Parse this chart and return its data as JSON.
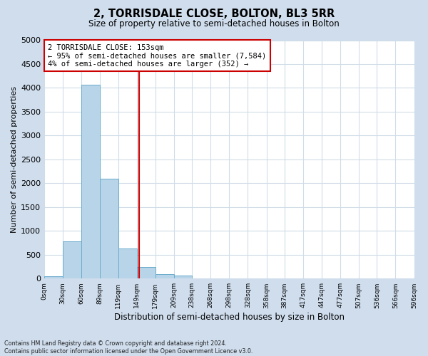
{
  "title": "2, TORRISDALE CLOSE, BOLTON, BL3 5RR",
  "subtitle": "Size of property relative to semi-detached houses in Bolton",
  "xlabel": "Distribution of semi-detached houses by size in Bolton",
  "ylabel": "Number of semi-detached properties",
  "bar_color": "#b8d4e8",
  "bar_edge_color": "#6aaccc",
  "background_color": "#cfdded",
  "plot_bg_color": "#ffffff",
  "gridcolor": "#d0dce8",
  "bin_edges": [
    0,
    30,
    60,
    89,
    119,
    149,
    179,
    209,
    238,
    268,
    298,
    328,
    358,
    387,
    417,
    447,
    477,
    507,
    536,
    566,
    596
  ],
  "bin_labels": [
    "0sqm",
    "30sqm",
    "60sqm",
    "89sqm",
    "119sqm",
    "149sqm",
    "179sqm",
    "209sqm",
    "238sqm",
    "268sqm",
    "298sqm",
    "328sqm",
    "358sqm",
    "387sqm",
    "417sqm",
    "447sqm",
    "477sqm",
    "507sqm",
    "536sqm",
    "566sqm",
    "596sqm"
  ],
  "bar_heights": [
    50,
    780,
    4070,
    2100,
    630,
    240,
    100,
    60,
    0,
    0,
    0,
    0,
    0,
    0,
    0,
    0,
    0,
    0,
    0,
    0
  ],
  "ylim": [
    0,
    5000
  ],
  "yticks": [
    0,
    500,
    1000,
    1500,
    2000,
    2500,
    3000,
    3500,
    4000,
    4500,
    5000
  ],
  "vline_x": 153,
  "vline_color": "#cc0000",
  "annotation_title": "2 TORRISDALE CLOSE: 153sqm",
  "annotation_line1": "← 95% of semi-detached houses are smaller (7,584)",
  "annotation_line2": "4% of semi-detached houses are larger (352) →",
  "annotation_box_color": "#ffffff",
  "annotation_box_edge": "#cc0000",
  "footer1": "Contains HM Land Registry data © Crown copyright and database right 2024.",
  "footer2": "Contains public sector information licensed under the Open Government Licence v3.0."
}
